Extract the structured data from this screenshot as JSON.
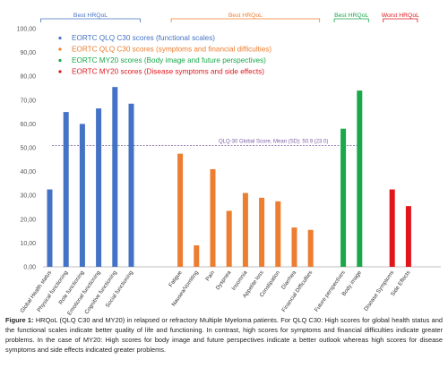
{
  "chart_data": {
    "type": "bar",
    "ylim": [
      0,
      100
    ],
    "yticks": [
      "0,00",
      "10,00",
      "20,00",
      "30,00",
      "40,00",
      "50,00",
      "60,00",
      "70,00",
      "80,00",
      "90,00",
      "100,00"
    ],
    "grid": false,
    "legend_position": "top-left",
    "categories": [
      "Global Health status",
      "Physical functioning",
      "Role functioning",
      "Emotional functioning",
      "Cognitive functioning",
      "Social functioning",
      "Fatigue",
      "Nausea/Vomiting",
      "Pain",
      "Dyspnea",
      "Insomnia",
      "Appetite loss",
      "Constipation",
      "Diarrhea",
      "Financial Difficulties",
      "Future perspectives",
      "Body image",
      "Disease Symptoms",
      "Side Effects"
    ],
    "groups": [
      {
        "name": "EORTC QLQ C30 scores (functional scales)",
        "color": "#4472C4",
        "header": "Best HRQoL",
        "categories": [
          "Global Health status",
          "Physical functioning",
          "Role functioning",
          "Emotional functioning",
          "Cognitive functioning",
          "Social functioning"
        ],
        "values": [
          32.5,
          65,
          60,
          66.5,
          75.5,
          68.5
        ]
      },
      {
        "name": "EORTC QLQ C30 scores (symptoms and financial difficulties)",
        "color": "#ED7D31",
        "header": "Best HRQoL",
        "categories": [
          "Fatigue",
          "Nausea/Vomiting",
          "Pain",
          "Dyspnea",
          "Insomnia",
          "Appetite loss",
          "Constipation",
          "Diarrhea",
          "Financial Difficulties"
        ],
        "values": [
          47.5,
          9,
          41,
          23.5,
          31,
          29,
          27.5,
          16.5,
          15.5
        ]
      },
      {
        "name": "EORTC MY20 scores (Body image and future perspectives)",
        "color": "#1AA84A",
        "header": "Best HRQoL",
        "categories": [
          "Future perspectives",
          "Body image"
        ],
        "values": [
          58,
          74
        ]
      },
      {
        "name": "EORTC MY20 scores (Disease symptoms and side effects)",
        "color": "#E0161C",
        "header": "Worst HRQoL",
        "categories": [
          "Disease Symptoms",
          "Side Effects"
        ],
        "values": [
          32.5,
          25.5
        ]
      }
    ],
    "reference_line": {
      "value": 50.9,
      "label": "QLQ-30 Global Score, Mean (SD): 50.9 (23.0)"
    }
  },
  "caption": {
    "lead": "Figure 1:",
    "text": " HRQoL (QLQ C30 and MY20) in relapsed or refractory Multiple Myeloma patients. For QLQ C30: High scores for global health status and the functional scales indicate better quality of life and functioning. In contrast, high scores for symptoms and financial difficulties indicate greater problems. In the case of MY20: High scores for body image and future perspectives indicate a better outlook whereas high scores for disease symptoms and side effects indicated greater problems."
  }
}
